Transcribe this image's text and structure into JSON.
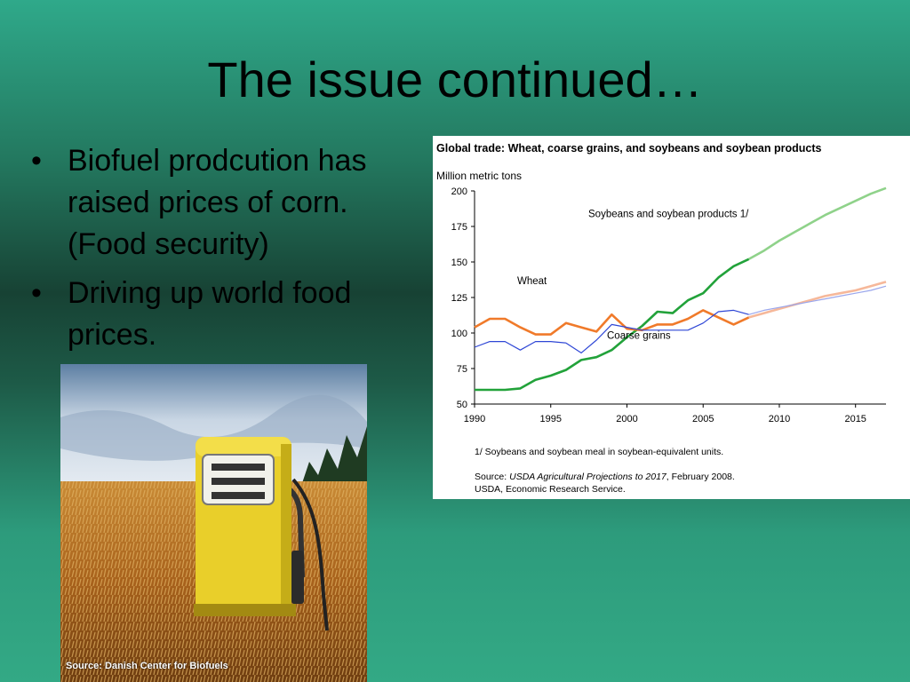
{
  "slide": {
    "title": "The issue continued…",
    "bullets": [
      "Biofuel prodcution has raised prices of corn. (Food security)",
      "Driving up world food prices."
    ],
    "bullet_glyph": "•"
  },
  "photo": {
    "caption": "Source: Danish Center for Biofuels",
    "subject": "yellow-fuel-pump-in-wheat-field"
  },
  "chart_data": {
    "type": "line",
    "title": "Global trade: Wheat, coarse grains, and soybeans and soybean products",
    "ylabel": "Million metric tons",
    "ylim": [
      50,
      200
    ],
    "xlim": [
      1990,
      2017
    ],
    "yticks": [
      50,
      75,
      100,
      125,
      150,
      175,
      200
    ],
    "xticks": [
      1990,
      1995,
      2000,
      2005,
      2010,
      2015
    ],
    "grid": false,
    "projection_start": 2008,
    "footnote": "1/ Soybeans and soybean meal in soybean-equivalent units.",
    "source_prefix": "Source:",
    "source_title": "USDA Agricultural Projections to 2017",
    "source_suffix": ", February 2008.",
    "source_org": "USDA, Economic Research Service.",
    "x": [
      1990,
      1991,
      1992,
      1993,
      1994,
      1995,
      1996,
      1997,
      1998,
      1999,
      2000,
      2001,
      2002,
      2003,
      2004,
      2005,
      2006,
      2007,
      2008,
      2009,
      2010,
      2011,
      2012,
      2013,
      2014,
      2015,
      2016,
      2017
    ],
    "series": [
      {
        "name": "Soybeans and soybean products 1/",
        "color": "#22a23a",
        "proj_color": "#8fd28a",
        "values": [
          60,
          60,
          60,
          61,
          67,
          70,
          74,
          81,
          83,
          88,
          97,
          105,
          115,
          114,
          123,
          128,
          139,
          147,
          152,
          158,
          165,
          171,
          177,
          183,
          188,
          193,
          198,
          202
        ]
      },
      {
        "name": "Wheat",
        "color": "#f07a2a",
        "proj_color": "#f6b89a",
        "values": [
          104,
          110,
          110,
          104,
          99,
          99,
          107,
          104,
          101,
          113,
          103,
          102,
          106,
          106,
          110,
          116,
          111,
          106,
          111,
          114,
          117,
          120,
          123,
          126,
          128,
          130,
          133,
          136
        ]
      },
      {
        "name": "Coarse grains",
        "color": "#2f47d6",
        "proj_color": "#9aa6ec",
        "values": [
          90,
          94,
          94,
          88,
          94,
          94,
          93,
          86,
          95,
          106,
          104,
          102,
          102,
          102,
          102,
          107,
          115,
          116,
          113,
          116,
          118,
          120,
          122,
          124,
          126,
          128,
          130,
          133
        ]
      }
    ],
    "labels": [
      {
        "series": "Soybeans and soybean products 1/",
        "text": "Soybeans and soybean products 1/"
      },
      {
        "series": "Wheat",
        "text": "Wheat"
      },
      {
        "series": "Coarse grains",
        "text": "Coarse grains"
      }
    ]
  }
}
